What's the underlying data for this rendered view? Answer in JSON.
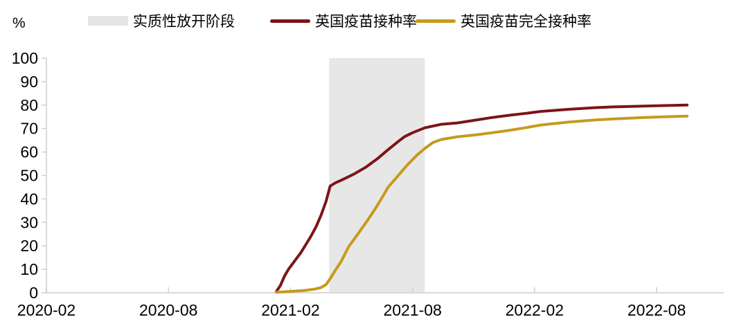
{
  "unit_label": "%",
  "legend": {
    "items": [
      {
        "label": "实质性放开阶段",
        "swatch": "box",
        "color": "#E5E5E5"
      },
      {
        "label": "英国疫苗接种率",
        "swatch": "line",
        "color": "#7D1417"
      },
      {
        "label": "英国疫苗完全接种率",
        "swatch": "line",
        "color": "#C79A1B"
      }
    ]
  },
  "chart_data": {
    "type": "line",
    "title": "",
    "grid": false,
    "legend_position": "top",
    "x_axis": {
      "unit": "months_since_2020-02",
      "range": [
        0,
        33.3
      ],
      "ticks": [
        {
          "m": 0,
          "label": "2020-02"
        },
        {
          "m": 6,
          "label": "2020-08"
        },
        {
          "m": 12,
          "label": "2021-02"
        },
        {
          "m": 18,
          "label": "2021-08"
        },
        {
          "m": 24,
          "label": "2022-02"
        },
        {
          "m": 30,
          "label": "2022-08"
        }
      ]
    },
    "y_axis": {
      "unit": "%",
      "range": [
        0,
        100
      ],
      "ticks": [
        0,
        10,
        20,
        30,
        40,
        50,
        60,
        70,
        80,
        90,
        100
      ]
    },
    "band": {
      "name": "实质性放开阶段",
      "x_start": 13.9,
      "x_end": 18.6,
      "y_start": 0,
      "y_end": 100,
      "color": "#E7E7E7"
    },
    "series": [
      {
        "name": "英国疫苗接种率",
        "color": "#7D1417",
        "width": 4,
        "points": [
          [
            11.3,
            0.5
          ],
          [
            11.5,
            3
          ],
          [
            11.7,
            7
          ],
          [
            11.9,
            10
          ],
          [
            12.2,
            13.5
          ],
          [
            12.5,
            17
          ],
          [
            12.75,
            20.5
          ],
          [
            13.0,
            24
          ],
          [
            13.25,
            28
          ],
          [
            13.5,
            33
          ],
          [
            13.75,
            39
          ],
          [
            13.95,
            45.5
          ],
          [
            14.2,
            46.8
          ],
          [
            14.5,
            48
          ],
          [
            15.1,
            50.5
          ],
          [
            15.7,
            53.5
          ],
          [
            16.25,
            57
          ],
          [
            16.8,
            61
          ],
          [
            17.3,
            64.5
          ],
          [
            17.6,
            66.5
          ],
          [
            18.0,
            68.2
          ],
          [
            18.6,
            70.3
          ],
          [
            19.4,
            71.8
          ],
          [
            20.2,
            72.4
          ],
          [
            21.1,
            73.6
          ],
          [
            21.9,
            74.7
          ],
          [
            22.8,
            75.7
          ],
          [
            23.6,
            76.5
          ],
          [
            24.3,
            77.3
          ],
          [
            25.7,
            78.2
          ],
          [
            27.0,
            78.9
          ],
          [
            28.1,
            79.3
          ],
          [
            29.4,
            79.6
          ],
          [
            30.4,
            79.8
          ],
          [
            31.5,
            80.0
          ]
        ]
      },
      {
        "name": "英国疫苗完全接种率",
        "color": "#C79A1B",
        "width": 4,
        "points": [
          [
            11.3,
            0.2
          ],
          [
            12.0,
            0.6
          ],
          [
            12.7,
            1.0
          ],
          [
            13.2,
            1.6
          ],
          [
            13.5,
            2.2
          ],
          [
            13.75,
            3.5
          ],
          [
            13.95,
            6
          ],
          [
            14.2,
            9.5
          ],
          [
            14.5,
            13.5
          ],
          [
            14.85,
            19.5
          ],
          [
            15.35,
            25.5
          ],
          [
            15.8,
            31
          ],
          [
            16.25,
            37
          ],
          [
            16.6,
            42
          ],
          [
            16.8,
            45
          ],
          [
            17.25,
            49.5
          ],
          [
            17.75,
            54.5
          ],
          [
            18.2,
            58.5
          ],
          [
            18.6,
            61.5
          ],
          [
            19.0,
            64
          ],
          [
            19.4,
            65.3
          ],
          [
            20.2,
            66.5
          ],
          [
            21.1,
            67.3
          ],
          [
            21.9,
            68.2
          ],
          [
            22.8,
            69.3
          ],
          [
            23.6,
            70.4
          ],
          [
            24.3,
            71.5
          ],
          [
            25.7,
            72.8
          ],
          [
            27.0,
            73.7
          ],
          [
            28.1,
            74.2
          ],
          [
            29.4,
            74.7
          ],
          [
            30.4,
            75.0
          ],
          [
            31.5,
            75.3
          ]
        ]
      }
    ],
    "colors": {
      "axis": "#D9D9D9",
      "tick": "#D0D0D0",
      "label": "#000000"
    }
  }
}
